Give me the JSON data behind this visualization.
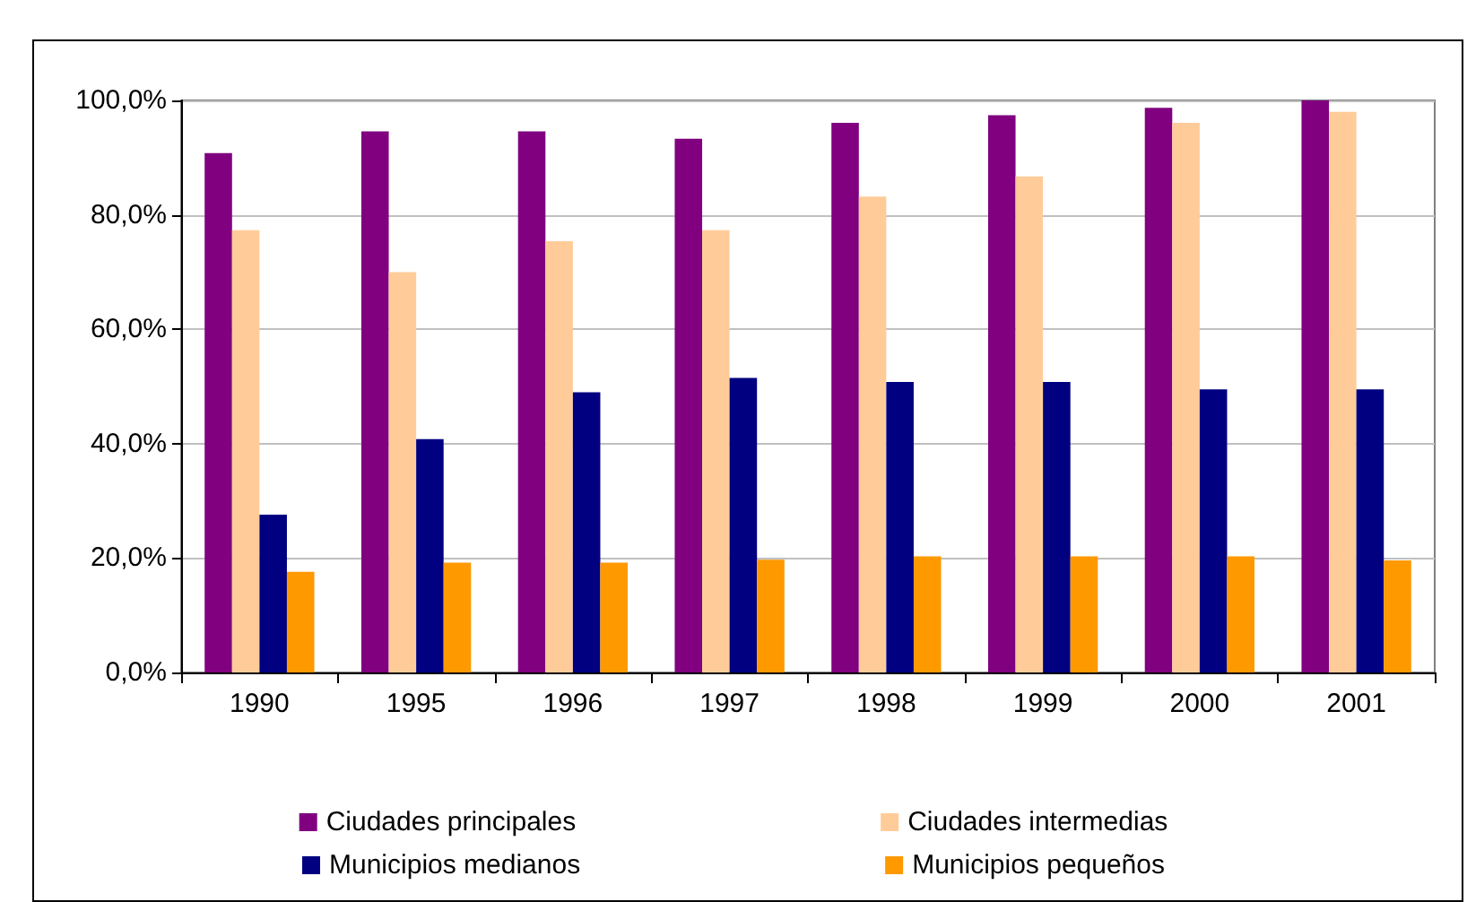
{
  "chart_data": {
    "type": "bar",
    "categories": [
      "1990",
      "1995",
      "1996",
      "1997",
      "1998",
      "1999",
      "2000",
      "2001"
    ],
    "series": [
      {
        "name": "Ciudades principales",
        "color": "#800080",
        "values": [
          90.8,
          94.6,
          94.6,
          93.3,
          96.1,
          97.4,
          98.7,
          100
        ]
      },
      {
        "name": "Ciudades intermedias",
        "color": "#ffcc99",
        "values": [
          77.3,
          70.0,
          75.4,
          77.3,
          83.2,
          86.7,
          96.1,
          98.0
        ]
      },
      {
        "name": "Municipios medianos",
        "color": "#000080",
        "values": [
          27.6,
          40.8,
          49.0,
          51.5,
          50.8,
          50.8,
          49.5,
          49.5
        ]
      },
      {
        "name": "Municipios pequeños",
        "color": "#ff9900",
        "values": [
          17.6,
          19.2,
          19.2,
          19.7,
          20.3,
          20.3,
          20.3,
          19.6
        ]
      }
    ],
    "ylim": [
      0,
      100
    ],
    "yticks": [
      {
        "value": 0,
        "label": "0,0%"
      },
      {
        "value": 20,
        "label": "20,0%"
      },
      {
        "value": 40,
        "label": "40,0%"
      },
      {
        "value": 60,
        "label": "60,0%"
      },
      {
        "value": 80,
        "label": "80,0%"
      },
      {
        "value": 100,
        "label": "100,0%"
      }
    ],
    "grid": "y",
    "legend": "bottom"
  }
}
